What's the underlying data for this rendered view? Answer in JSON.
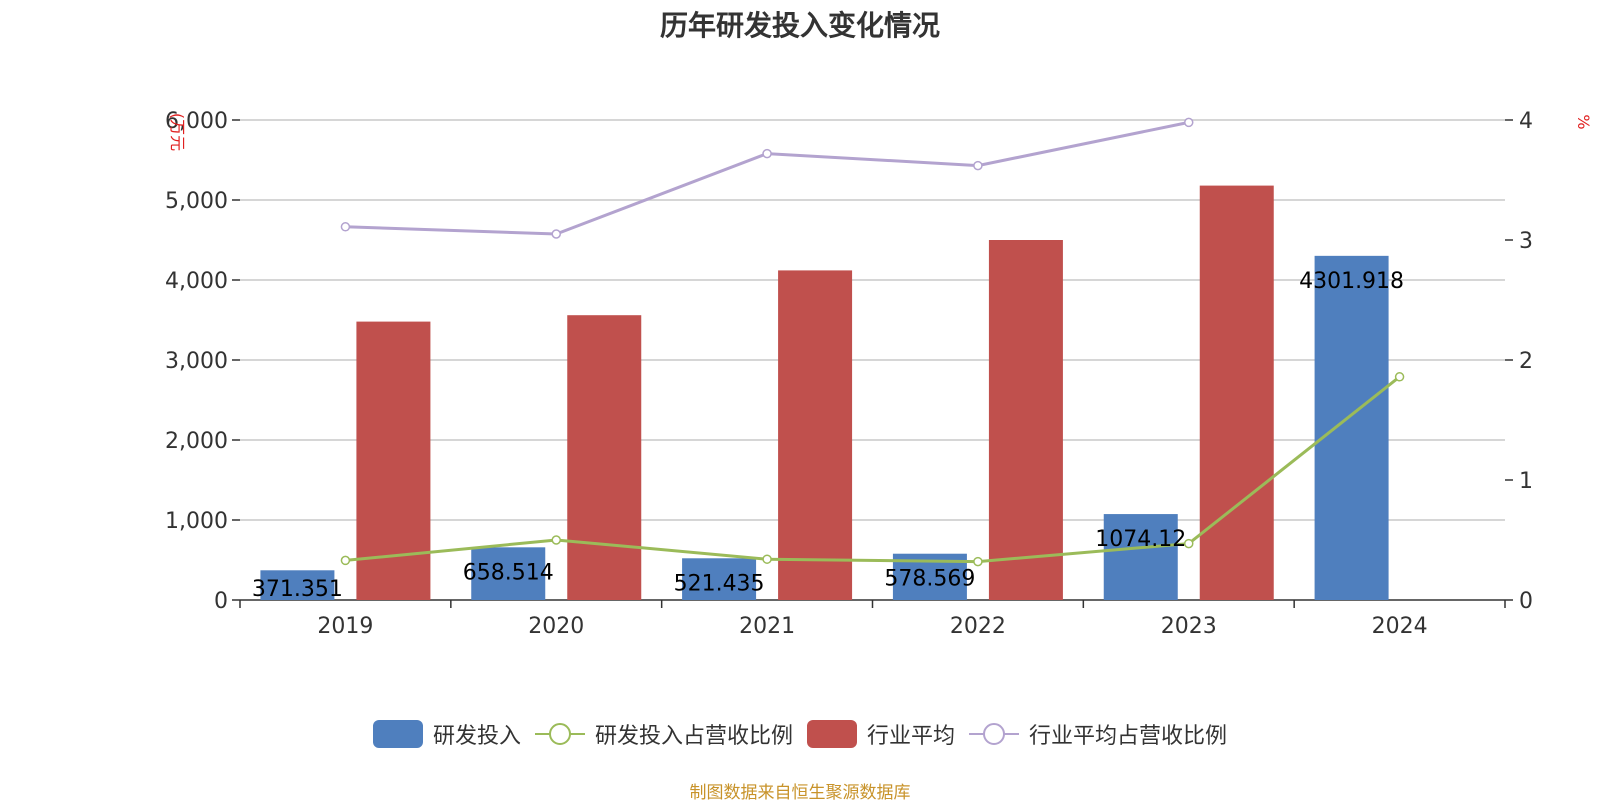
{
  "chart_data": {
    "type": "bar",
    "title": "历年研发投入变化情况",
    "categories": [
      "2019",
      "2020",
      "2021",
      "2022",
      "2023",
      "2024"
    ],
    "y_left": {
      "unit": "(万元",
      "ylim": [
        0,
        6000
      ],
      "ticks": [
        "0",
        "1,000",
        "2,000",
        "3,000",
        "4,000",
        "5,000",
        "6,000"
      ],
      "tick_values": [
        0,
        1000,
        2000,
        3000,
        4000,
        5000,
        6000
      ]
    },
    "y_right": {
      "unit": "%",
      "ylim": [
        0,
        4
      ],
      "ticks": [
        "0",
        "1",
        "2",
        "3",
        "4"
      ],
      "tick_values": [
        0,
        1,
        2,
        3,
        4
      ]
    },
    "grid": true,
    "legend_position": "bottom",
    "series": [
      {
        "name": "研发投入",
        "type": "bar",
        "axis": "left",
        "color": "#4f7fbe",
        "values": [
          371.351,
          658.514,
          521.435,
          578.569,
          1074.12,
          4301.918
        ],
        "labels": [
          "371.351",
          "658.514",
          "521.435",
          "578.569",
          "1074.12",
          "4301.918"
        ]
      },
      {
        "name": "研发投入占营收比例",
        "type": "line",
        "axis": "right",
        "color": "#9bbb59",
        "values": [
          0.33,
          0.5,
          0.34,
          0.32,
          0.47,
          1.86
        ]
      },
      {
        "name": "行业平均",
        "type": "bar",
        "axis": "left",
        "color": "#c0504d",
        "values": [
          3480,
          3560,
          4120,
          4500,
          5180,
          null
        ]
      },
      {
        "name": "行业平均占营收比例",
        "type": "line",
        "axis": "right",
        "color": "#b3a3cf",
        "values": [
          3.11,
          3.05,
          3.72,
          3.62,
          3.98,
          null
        ]
      }
    ]
  },
  "source_note": "制图数据来自恒生聚源数据库"
}
